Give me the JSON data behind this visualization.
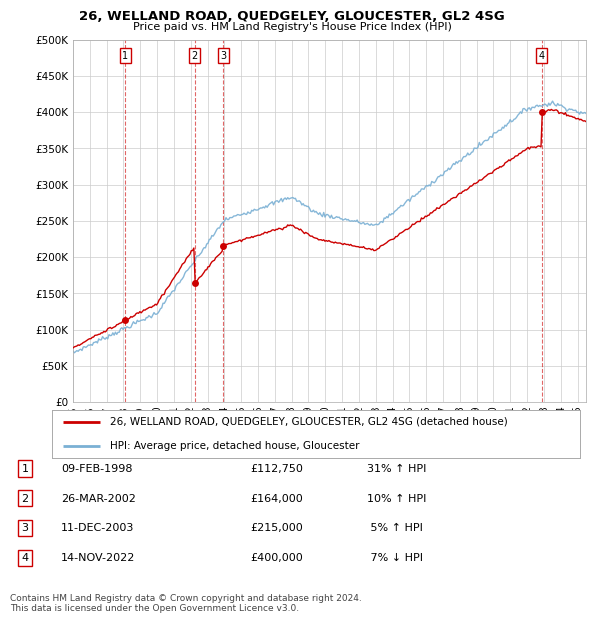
{
  "title": "26, WELLAND ROAD, QUEDGELEY, GLOUCESTER, GL2 4SG",
  "subtitle": "Price paid vs. HM Land Registry's House Price Index (HPI)",
  "ylabel_ticks": [
    "£0",
    "£50K",
    "£100K",
    "£150K",
    "£200K",
    "£250K",
    "£300K",
    "£350K",
    "£400K",
    "£450K",
    "£500K"
  ],
  "ytick_values": [
    0,
    50000,
    100000,
    150000,
    200000,
    250000,
    300000,
    350000,
    400000,
    450000,
    500000
  ],
  "xlim_start": 1995.0,
  "xlim_end": 2025.5,
  "ylim_min": 0,
  "ylim_max": 500000,
  "sale_dates": [
    1998.1,
    2002.23,
    2003.94,
    2022.87
  ],
  "sale_prices": [
    112750,
    164000,
    215000,
    400000
  ],
  "sale_labels": [
    "1",
    "2",
    "3",
    "4"
  ],
  "hpi_red_color": "#cc0000",
  "hpi_blue_color": "#7ab0d4",
  "legend_red_label": "26, WELLAND ROAD, QUEDGELEY, GLOUCESTER, GL2 4SG (detached house)",
  "legend_blue_label": "HPI: Average price, detached house, Gloucester",
  "table_rows": [
    [
      "1",
      "09-FEB-1998",
      "£112,750",
      "31% ↑ HPI"
    ],
    [
      "2",
      "26-MAR-2002",
      "£164,000",
      "10% ↑ HPI"
    ],
    [
      "3",
      "11-DEC-2003",
      "£215,000",
      " 5% ↑ HPI"
    ],
    [
      "4",
      "14-NOV-2022",
      "£400,000",
      " 7% ↓ HPI"
    ]
  ],
  "footnote": "Contains HM Land Registry data © Crown copyright and database right 2024.\nThis data is licensed under the Open Government Licence v3.0.",
  "background_color": "#ffffff",
  "grid_color": "#cccccc",
  "xtick_years": [
    1995,
    1996,
    1997,
    1998,
    1999,
    2000,
    2001,
    2002,
    2003,
    2004,
    2005,
    2006,
    2007,
    2008,
    2009,
    2010,
    2011,
    2012,
    2013,
    2014,
    2015,
    2016,
    2017,
    2018,
    2019,
    2020,
    2021,
    2022,
    2023,
    2024,
    2025
  ]
}
